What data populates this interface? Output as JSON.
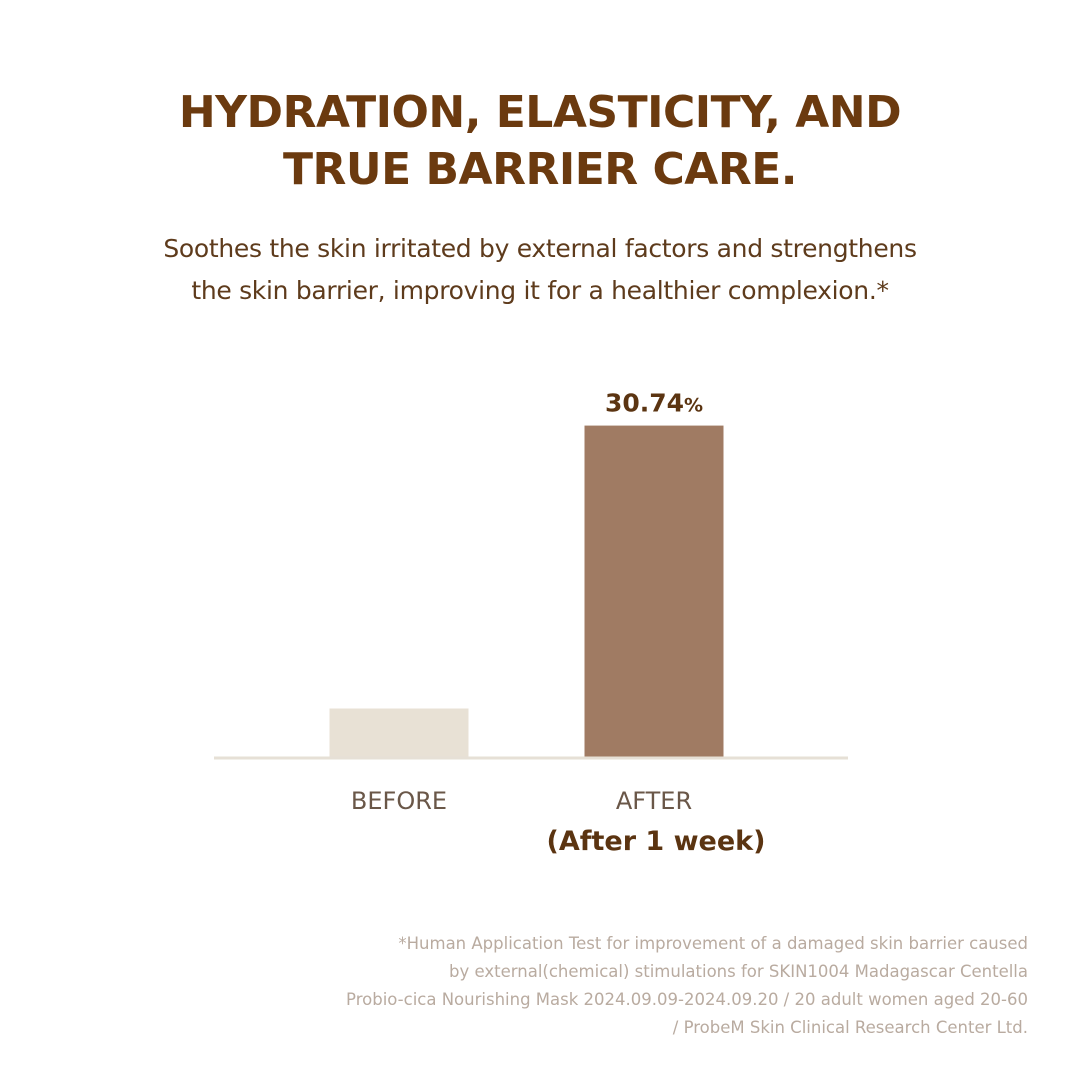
{
  "headline": {
    "line1": "HYDRATION, ELASTICITY, AND",
    "line2": "TRUE BARRIER CARE."
  },
  "subtitle": {
    "line1": "Soothes the skin irritated by external factors and strengthens",
    "line2": "the skin barrier, improving it for a healthier complexion.*"
  },
  "chart_data": {
    "type": "bar",
    "title": "",
    "xlabel": "",
    "ylabel": "",
    "categories": [
      "BEFORE",
      "AFTER"
    ],
    "sublabels": [
      "",
      "(After 1 week)"
    ],
    "values": [
      4.5,
      30.74
    ],
    "value_labels": [
      "",
      "30.74"
    ],
    "value_unit": "%",
    "ylim": [
      0,
      32
    ],
    "grid": false,
    "legend": "none",
    "colors": [
      "#e8e1d5",
      "#a07b63"
    ],
    "baseline_color": "#e6e0d6",
    "label_color": "#6a5748",
    "value_label_color": "#5b3411"
  },
  "footnote": {
    "line1": "*Human Application Test for improvement of a damaged skin barrier caused",
    "line2": "by external(chemical) stimulations for SKIN1004 Madagascar Centella",
    "line3": "Probio-cica Nourishing Mask 2024.09.09-2024.09.20 / 20 adult women aged 20-60",
    "line4": "/ ProbeM Skin Clinical Research Center Ltd."
  }
}
